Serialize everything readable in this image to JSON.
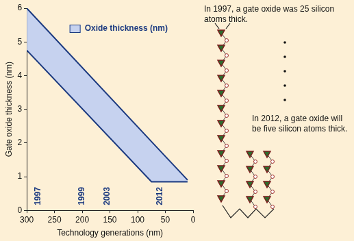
{
  "chart_data": {
    "type": "area",
    "x_label": "Technology generations (nm)",
    "y_label": "Gate oxide thickness (nm)",
    "series": [
      {
        "name": "Oxide thickness (nm)",
        "color": "#c6d2ef",
        "x": [
          300,
          75,
          10
        ],
        "lower": [
          4.75,
          0.85,
          0.85
        ],
        "upper": [
          6.0,
          2.04,
          0.9
        ]
      }
    ],
    "xlim": [
      300,
      0
    ],
    "xticks": [
      300,
      250,
      200,
      150,
      100,
      50,
      0
    ],
    "ylim": [
      0,
      6
    ],
    "yticks": [
      0,
      1,
      2,
      3,
      4,
      5,
      6
    ],
    "grid": false,
    "legend": "upper right",
    "annotations": [
      {
        "text": "1997",
        "x": 280,
        "y": 0.15
      },
      {
        "text": "1999",
        "x": 200,
        "y": 0.15
      },
      {
        "text": "2003",
        "x": 155,
        "y": 0.15
      },
      {
        "text": "2012",
        "x": 60,
        "y": 0.15
      }
    ]
  },
  "notes": [
    "In 1997, a gate oxide was 25 silicon atoms thick.",
    "In 2012, a gate oxide will be five silicon atoms thick."
  ]
}
